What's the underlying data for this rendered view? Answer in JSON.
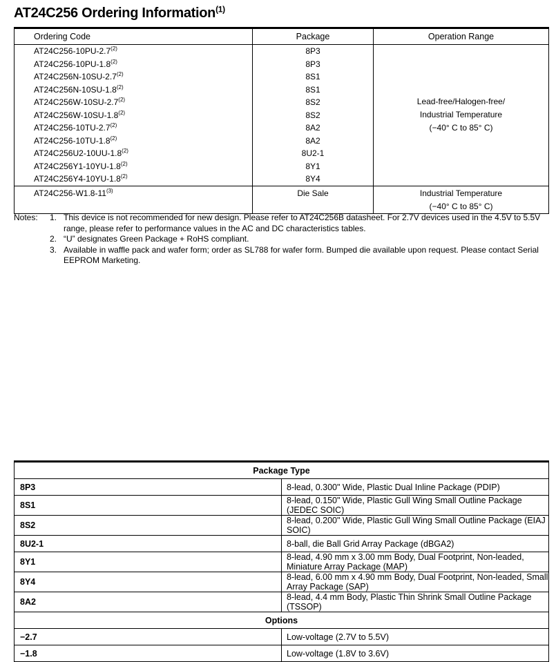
{
  "title": {
    "text": "AT24C256 Ordering Information",
    "footnote": "(1)"
  },
  "ordering_table": {
    "headers": [
      "Ordering Code",
      "Package",
      "Operation Range"
    ],
    "rows": [
      {
        "code": "AT24C256-10PU-2.7",
        "note": "(2)",
        "package": "8P3"
      },
      {
        "code": "AT24C256-10PU-1.8",
        "note": "(2)",
        "package": "8P3"
      },
      {
        "code": "AT24C256N-10SU-2.7",
        "note": "(2)",
        "package": "8S1"
      },
      {
        "code": "AT24C256N-10SU-1.8",
        "note": "(2)",
        "package": "8S1"
      },
      {
        "code": "AT24C256W-10SU-2.7",
        "note": "(2)",
        "package": "8S2"
      },
      {
        "code": "AT24C256W-10SU-1.8",
        "note": "(2)",
        "package": "8S2"
      },
      {
        "code": "AT24C256-10TU-2.7",
        "note": "(2)",
        "package": "8A2"
      },
      {
        "code": "AT24C256-10TU-1.8",
        "note": "(2)",
        "package": "8A2"
      },
      {
        "code": "AT24C256U2-10UU-1.8",
        "note": "(2)",
        "package": "8U2-1"
      },
      {
        "code": "AT24C256Y1-10YU-1.8",
        "note": "(2)",
        "package": "8Y1"
      },
      {
        "code": "AT24C256Y4-10YU-1.8",
        "note": "(2)",
        "package": "8Y4"
      }
    ],
    "group_range": [
      "Lead-free/Halogen-free/",
      "Industrial Temperature",
      "(−40° C to 85° C)"
    ],
    "die": {
      "code": "AT24C256-W1.8-11",
      "note": "(3)",
      "package": "Die Sale",
      "range": [
        "Industrial Temperature",
        "(−40° C to 85° C)"
      ]
    }
  },
  "notes": {
    "label": "Notes:",
    "items": [
      {
        "n": "1.",
        "text": "This device is not recommended for new design. Please refer to AT24C256B datasheet. For 2.7V devices used in the 4.5V to 5.5V range, please refer to performance values in the AC and DC characteristics tables."
      },
      {
        "n": "2.",
        "text": "“U” designates Green Package + RoHS compliant."
      },
      {
        "n": "3.",
        "text": "Available in waffle pack and wafer form; order as SL788 for wafer form. Bumped die available upon request. Please contact Serial EEPROM Marketing."
      }
    ]
  },
  "package_table": {
    "header": "Package Type",
    "rows": [
      {
        "k": "8P3",
        "v": "8-lead, 0.300\" Wide, Plastic Dual Inline Package (PDIP)"
      },
      {
        "k": "8S1",
        "v": "8-lead, 0.150\" Wide, Plastic Gull Wing Small Outline Package (JEDEC SOIC)"
      },
      {
        "k": "8S2",
        "v": "8-lead, 0.200\" Wide, Plastic Gull Wing Small Outline Package (EIAJ SOIC)"
      },
      {
        "k": "8U2-1",
        "v": "8-ball, die Ball Grid Array Package (dBGA2)"
      },
      {
        "k": "8Y1",
        "v": "8-lead, 4.90 mm x 3.00 mm Body, Dual Footprint, Non-leaded, Miniature Array Package (MAP)"
      },
      {
        "k": "8Y4",
        "v": "8-lead, 6.00 mm x 4.90 mm Body, Dual Footprint, Non-leaded, Small Array Package (SAP)"
      },
      {
        "k": "8A2",
        "v": "8-lead, 4.4 mm Body, Plastic Thin Shrink Small Outline Package (TSSOP)"
      }
    ],
    "options_header": "Options",
    "options": [
      {
        "k": "−2.7",
        "v": "Low-voltage (2.7V to 5.5V)"
      },
      {
        "k": "−1.8",
        "v": "Low-voltage (1.8V to 3.6V)"
      }
    ]
  }
}
